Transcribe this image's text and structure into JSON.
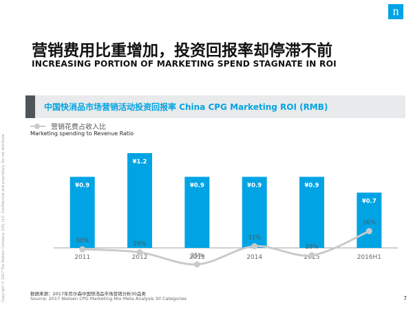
{
  "header": {
    "logo_glyph": "n",
    "title_cn": "营销费用比重增加，投资回报率却停滞不前",
    "title_en": "INCREASING PORTION OF MARKETING SPEND STAGNATE IN ROI",
    "side_note": "Copyright © 2017 The Nielsen Company (US), LLC. Confidential and proprietary. Do not distribute."
  },
  "chart_data": {
    "type": "bar",
    "title": "中国快消品市场营销活动投资回报率 China CPG Marketing ROI (RMB)",
    "categories": [
      "2011",
      "2012",
      "2013",
      "2014",
      "2015",
      "2016H1"
    ],
    "series": [
      {
        "name": "ROI",
        "values": [
          0.9,
          1.2,
          0.9,
          0.9,
          0.9,
          0.7
        ],
        "labels": [
          "¥0.9",
          "¥1.2",
          "¥0.9",
          "¥0.9",
          "¥0.9",
          "¥0.7"
        ],
        "color": "#00a4e4"
      },
      {
        "name": "营销花费占收入比",
        "name_en": "Marketing spending to Revenue Ratio",
        "type": "line",
        "values": [
          30,
          29,
          25,
          31,
          28,
          36
        ],
        "labels": [
          "30%",
          "29%",
          "25%",
          "31%",
          "28%",
          "36%"
        ],
        "color": "#c8cacc"
      }
    ],
    "ylim": [
      0,
      1.4
    ],
    "line_ylim": [
      0,
      60
    ],
    "grid": false,
    "legend": "top-left"
  },
  "footer": {
    "source_cn": "数据来源：2017年尼尔森中国快消品市场营销分析30品类",
    "source_en": "Source: 2017 Nielsen CPG Marketing Mix Meta Analysis 30 Categories",
    "page_number": "7"
  }
}
